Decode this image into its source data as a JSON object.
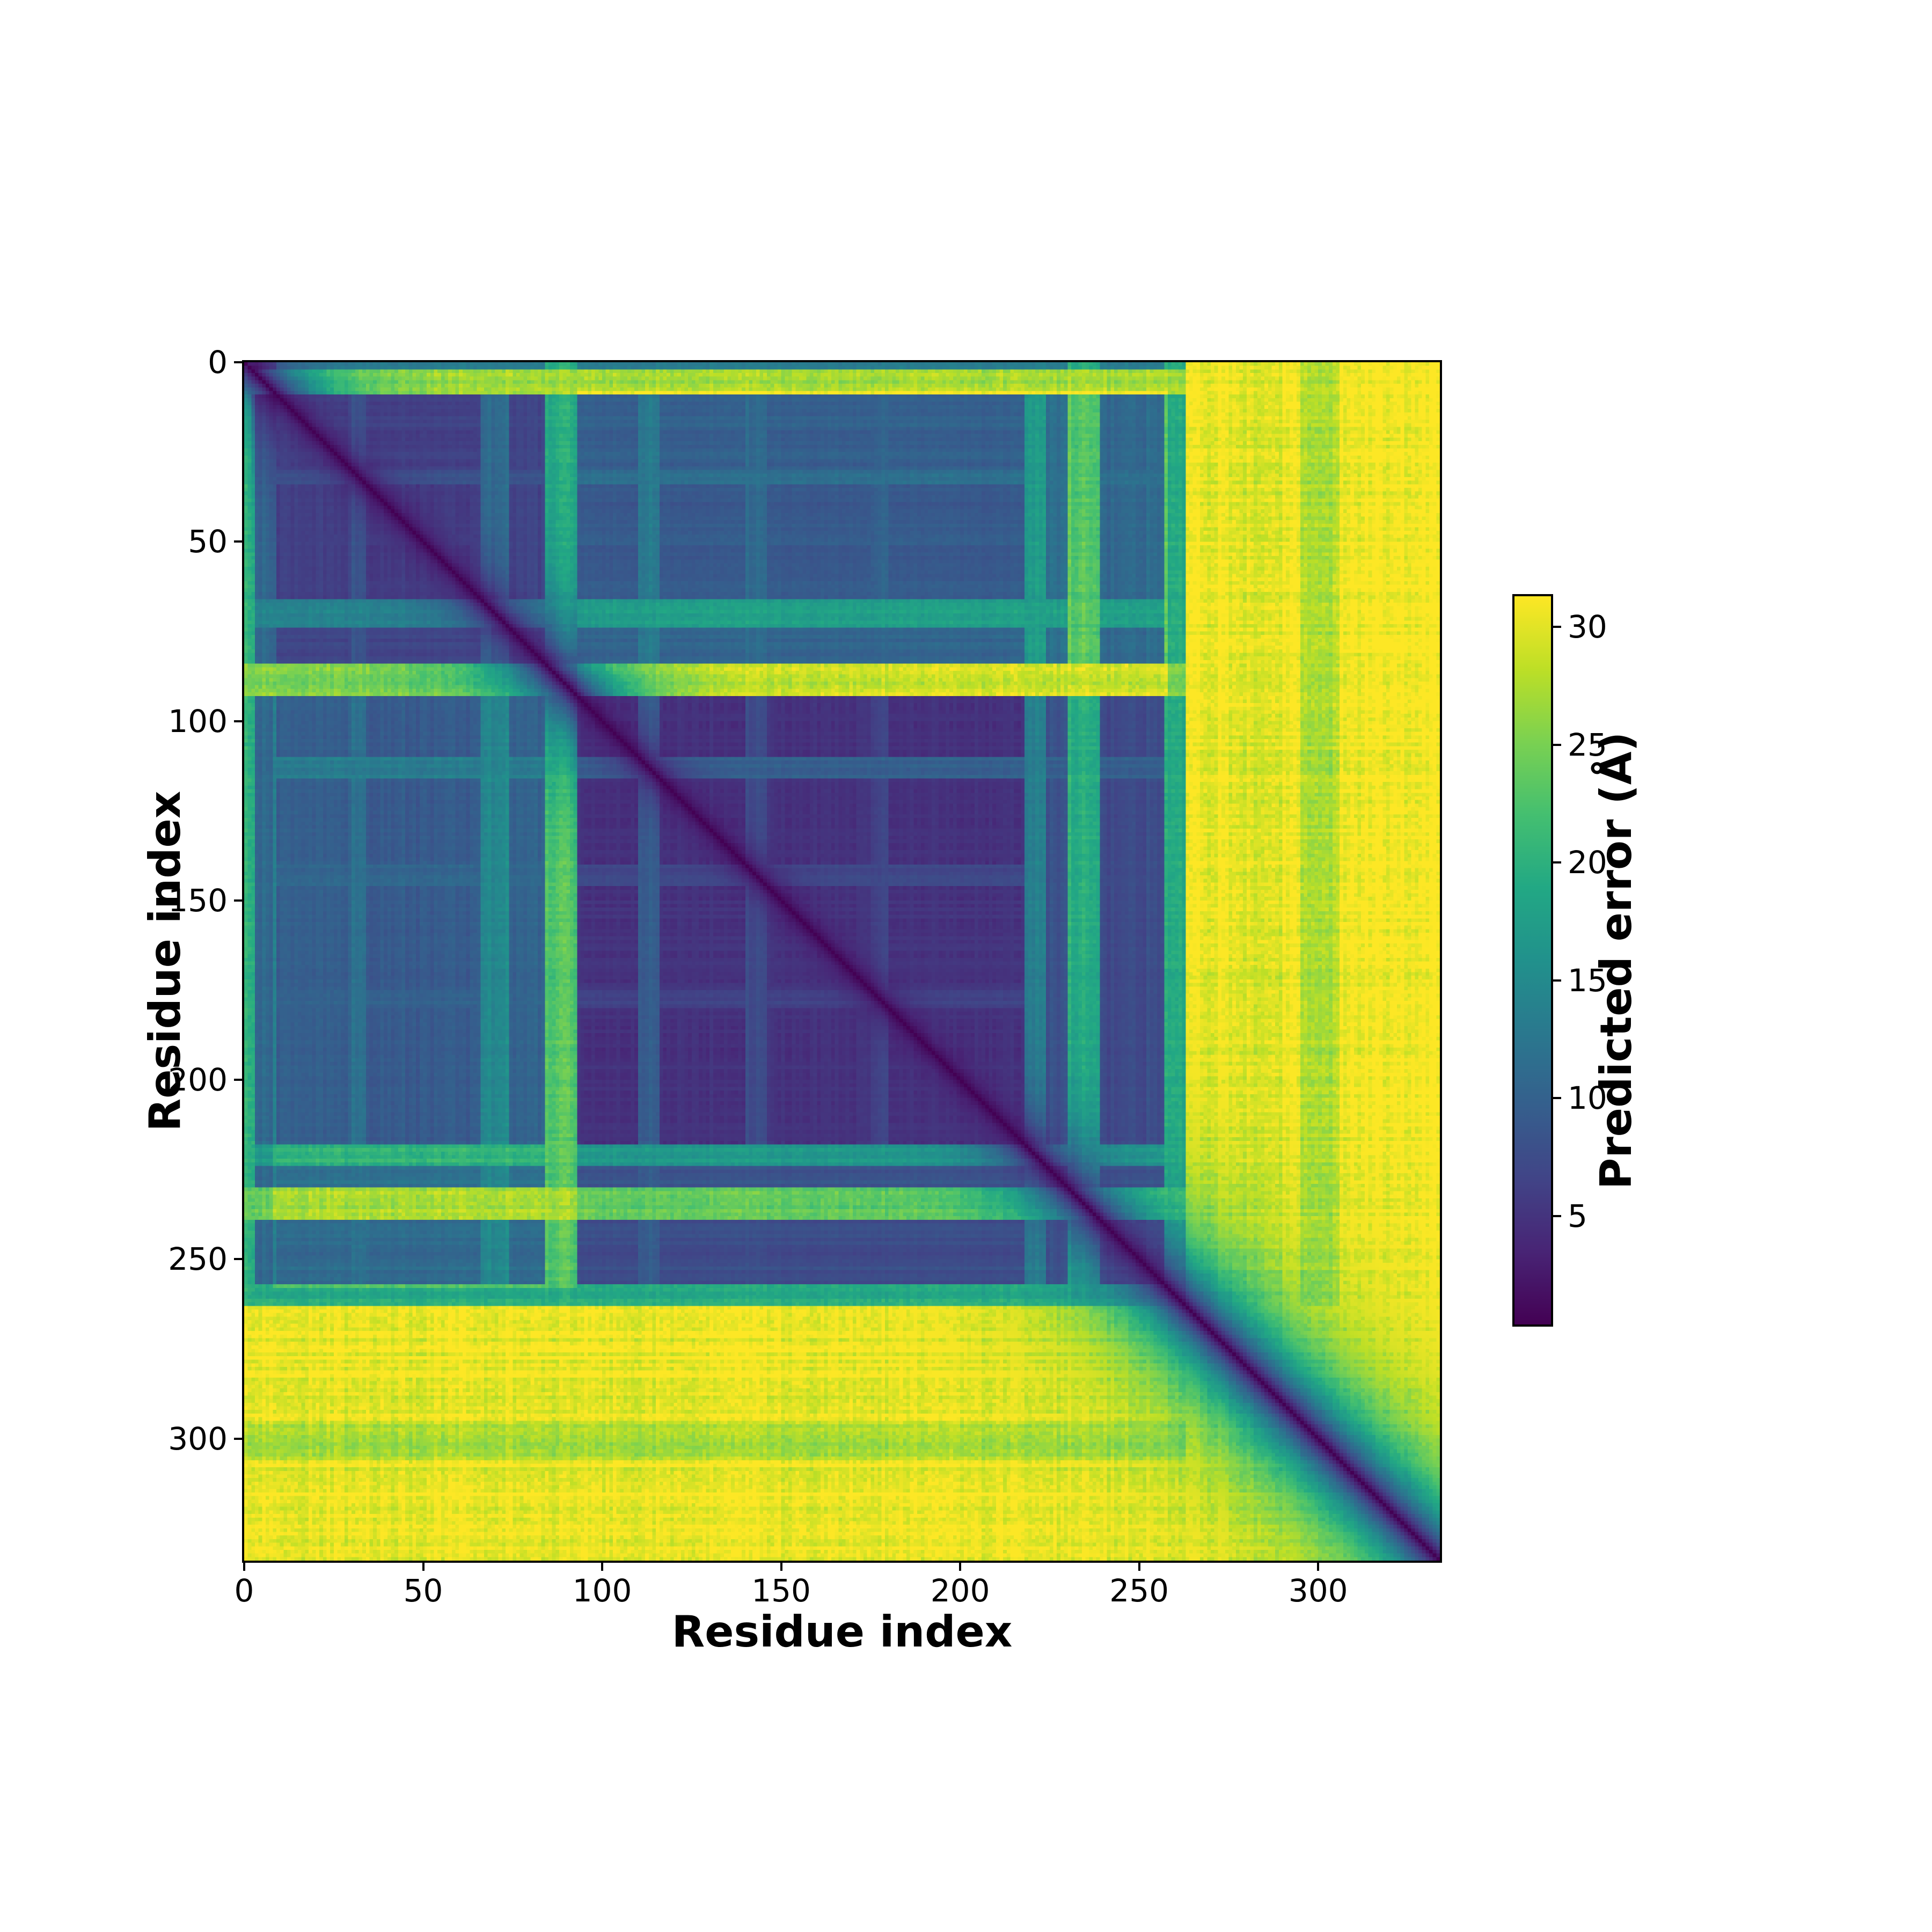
{
  "figure": {
    "background": "#ffffff",
    "title": ""
  },
  "chart_data": {
    "type": "heatmap",
    "title": "",
    "xlabel": "Residue index",
    "ylabel": "Residue index",
    "x_ticks": [
      0,
      50,
      100,
      150,
      200,
      250,
      300
    ],
    "y_ticks": [
      0,
      50,
      100,
      150,
      200,
      250,
      300
    ],
    "x_range": [
      0,
      334
    ],
    "y_range": [
      0,
      334
    ],
    "n_residues": 334,
    "grid": false,
    "legend": "none",
    "colorbar": {
      "label": "Predicted error (Å)",
      "ticks": [
        5,
        10,
        15,
        20,
        25,
        30
      ],
      "vmin": 0.4,
      "vmax": 31.3,
      "colormap": "viridis",
      "stops": [
        [
          0.0,
          "#440154"
        ],
        [
          0.1,
          "#482475"
        ],
        [
          0.2,
          "#414487"
        ],
        [
          0.3,
          "#355f8d"
        ],
        [
          0.4,
          "#2a788e"
        ],
        [
          0.5,
          "#21918c"
        ],
        [
          0.6,
          "#22a884"
        ],
        [
          0.7,
          "#44bf70"
        ],
        [
          0.8,
          "#7ad151"
        ],
        [
          0.9,
          "#bddf26"
        ],
        [
          1.0,
          "#fde725"
        ]
      ]
    },
    "structure": {
      "description": "Predicted aligned error matrix (AlphaFold-style PAE). Ordered core residues ~8-258 (two sub-domains split near residue 93) show low error (dark); a disordered N-terminus (0-8), an inter-domain linker (~84-93), flexible loops near 66-74, 110-116, 218-224 and 230-239 show elevated error stripes; a disordered C-terminal tail (~258-334) shows maximal error (~31 Å, yellow) off-diagonal with a dark low-error diagonal band that widens toward the C-terminus.",
      "core": [
        8,
        258
      ],
      "domain_split": 93,
      "cross_domain_offset": 0.12,
      "base_floor": 0.045,
      "diag_width_base": 2.6,
      "diag_width_scale": 14,
      "stripe_amp": 0.14,
      "cell_noise_amp": 0.08,
      "noise_seed": 1337,
      "row_disorder_segments": [
        [
          0,
          2,
          0.4
        ],
        [
          2,
          9,
          0.85
        ],
        [
          9,
          30,
          0.15
        ],
        [
          30,
          34,
          0.22
        ],
        [
          34,
          66,
          0.13
        ],
        [
          66,
          74,
          0.42
        ],
        [
          74,
          84,
          0.16
        ],
        [
          84,
          93,
          0.8
        ],
        [
          93,
          110,
          0.09
        ],
        [
          110,
          116,
          0.28
        ],
        [
          116,
          140,
          0.09
        ],
        [
          140,
          146,
          0.18
        ],
        [
          146,
          175,
          0.1
        ],
        [
          175,
          180,
          0.17
        ],
        [
          180,
          218,
          0.09
        ],
        [
          218,
          224,
          0.5
        ],
        [
          224,
          230,
          0.22
        ],
        [
          230,
          239,
          0.75
        ],
        [
          239,
          257,
          0.19
        ],
        [
          257,
          263,
          0.6
        ],
        [
          263,
          295,
          0.97
        ],
        [
          295,
          306,
          0.88
        ],
        [
          306,
          334,
          0.98
        ]
      ],
      "col_disorder_segments": [
        [
          0,
          3,
          0.6
        ],
        [
          3,
          9,
          0.3
        ],
        [
          9,
          30,
          0.15
        ],
        [
          30,
          34,
          0.22
        ],
        [
          34,
          66,
          0.13
        ],
        [
          66,
          74,
          0.32
        ],
        [
          74,
          84,
          0.16
        ],
        [
          84,
          93,
          0.6
        ],
        [
          93,
          110,
          0.09
        ],
        [
          110,
          116,
          0.26
        ],
        [
          116,
          140,
          0.09
        ],
        [
          140,
          146,
          0.18
        ],
        [
          146,
          175,
          0.1
        ],
        [
          175,
          180,
          0.17
        ],
        [
          180,
          218,
          0.09
        ],
        [
          218,
          224,
          0.4
        ],
        [
          224,
          230,
          0.22
        ],
        [
          230,
          239,
          0.6
        ],
        [
          239,
          257,
          0.19
        ],
        [
          257,
          263,
          0.6
        ],
        [
          263,
          295,
          0.97
        ],
        [
          295,
          306,
          0.88
        ],
        [
          306,
          334,
          0.98
        ]
      ]
    }
  }
}
